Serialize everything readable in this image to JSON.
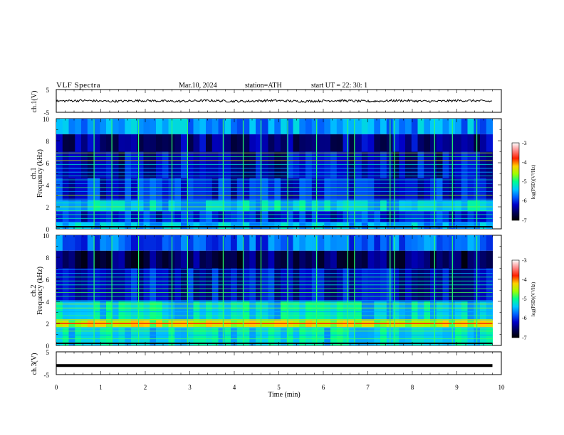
{
  "header": {
    "title": "VLF  Spectra",
    "date": "Mar.10, 2024",
    "station": "station=ATH",
    "start_ut": "start  UT  =   22: 30: 1"
  },
  "panels": {
    "ch1_wave": {
      "ylabel": "ch.1(V)",
      "ticks": [
        "5",
        "-5"
      ]
    },
    "ch1_spec": {
      "ylabel_top": "ch.1",
      "ylabel": "Frequency  (kHz)",
      "ticks": [
        "10",
        "8",
        "6",
        "4",
        "2",
        "0"
      ]
    },
    "ch2_spec": {
      "ylabel_top": "ch.2",
      "ylabel": "Frequency  (kHz)",
      "ticks": [
        "10",
        "8",
        "6",
        "4",
        "2",
        "0"
      ]
    },
    "ch3_wave": {
      "ylabel": "ch.3(V)",
      "ticks": [
        "5",
        "-5"
      ]
    }
  },
  "xaxis": {
    "label": "Time  (min)",
    "ticks": [
      "0",
      "1",
      "2",
      "3",
      "4",
      "5",
      "6",
      "7",
      "8",
      "9",
      "10"
    ]
  },
  "colorbars": [
    {
      "label": "log(PSD)(V²/Hz)",
      "ticks": [
        "-3",
        "-4",
        "-5",
        "-6",
        "-7"
      ]
    },
    {
      "label": "log(PSD)(V²/Hz)",
      "ticks": [
        "-3",
        "-4",
        "-5",
        "-6",
        "-7"
      ]
    }
  ],
  "colors": {
    "colormap": [
      "#000000",
      "#00005a",
      "#0000c8",
      "#0060ff",
      "#00c8ff",
      "#00ff90",
      "#a0ff00",
      "#ffd000",
      "#ff2000",
      "#ff8888",
      "#ffffff"
    ]
  },
  "chart_data": [
    {
      "type": "line",
      "panel": "ch.1(V)",
      "x_unit": "min",
      "xlim": [
        0,
        10
      ],
      "ylim": [
        -5,
        5
      ],
      "data_extent_x": [
        0,
        9.8
      ],
      "description_values": {
        "mean_level_V": 0.0,
        "approx_peak_to_peak_V": 1.4
      },
      "series": [
        {
          "name": "",
          "values_sampled_every_0_7min": [
            0.0,
            0.3,
            -0.2,
            0.1,
            0.2,
            -0.3,
            0.0,
            -0.1,
            0.2,
            -0.2,
            0.1,
            0.0,
            -0.1,
            0.0,
            0.1
          ]
        }
      ]
    },
    {
      "type": "heatmap",
      "panel": "ch.1 Frequency (kHz)",
      "x_unit": "min",
      "xlim": [
        0,
        10
      ],
      "y_unit": "kHz",
      "ylim": [
        0,
        10
      ],
      "z_unit": "log(PSD)(V^2/Hz)",
      "zlim": [
        -7,
        -3
      ],
      "data_extent_x": [
        0,
        9.8
      ],
      "freq_bands_kHz": [
        {
          "range": [
            0.0,
            0.6
          ],
          "level": -5.5
        },
        {
          "range": [
            0.6,
            1.6
          ],
          "level": -6.1
        },
        {
          "range": [
            1.6,
            2.6
          ],
          "level": -5.4
        },
        {
          "range": [
            2.6,
            4.6
          ],
          "level": -6.1
        },
        {
          "range": [
            4.6,
            7.0
          ],
          "level": -6.3
        },
        {
          "range": [
            7.0,
            8.6
          ],
          "level": -6.4
        },
        {
          "range": [
            8.6,
            10.0
          ],
          "level": -5.6
        }
      ],
      "broadband_spikes_min": [
        0.85,
        1.25,
        1.85,
        2.6,
        2.95,
        3.75,
        4.2,
        4.6,
        5.2,
        5.85,
        6.55,
        6.7,
        7.5,
        7.6,
        8.5,
        8.9,
        9.45
      ]
    },
    {
      "type": "heatmap",
      "panel": "ch.2 Frequency (kHz)",
      "x_unit": "min",
      "xlim": [
        0,
        10
      ],
      "y_unit": "kHz",
      "ylim": [
        0,
        10
      ],
      "z_unit": "log(PSD)(V^2/Hz)",
      "zlim": [
        -7,
        -3
      ],
      "data_extent_x": [
        0,
        9.8
      ],
      "freq_bands_kHz": [
        {
          "range": [
            0.0,
            1.6
          ],
          "level": -5.3
        },
        {
          "range": [
            1.6,
            2.3
          ],
          "level": -4.5
        },
        {
          "range": [
            2.3,
            4.0
          ],
          "level": -5.3
        },
        {
          "range": [
            4.0,
            7.0
          ],
          "level": -6.2
        },
        {
          "range": [
            7.0,
            8.6
          ],
          "level": -6.6
        },
        {
          "range": [
            8.6,
            10.0
          ],
          "level": -5.8
        }
      ],
      "strong_line_kHz": 2.0,
      "broadband_spikes_min": [
        0.85,
        1.25,
        1.85,
        2.6,
        2.95,
        3.75,
        4.2,
        4.6,
        5.2,
        5.85,
        6.55,
        6.7,
        7.5,
        7.6,
        8.5,
        8.9,
        9.45
      ]
    },
    {
      "type": "line",
      "panel": "ch.3(V)",
      "x_unit": "min",
      "xlim": [
        0,
        10
      ],
      "ylim": [
        -5,
        5
      ],
      "data_extent_x": [
        0,
        9.8
      ],
      "series": [
        {
          "name": "",
          "values_sampled_every_0_7min": [
            -1.0,
            -1.0,
            -1.0,
            -1.0,
            -1.0,
            -1.0,
            -1.0,
            -1.0,
            -1.0,
            -1.0,
            -1.0,
            -1.0,
            -1.0,
            -1.0,
            -1.0
          ]
        }
      ]
    }
  ]
}
